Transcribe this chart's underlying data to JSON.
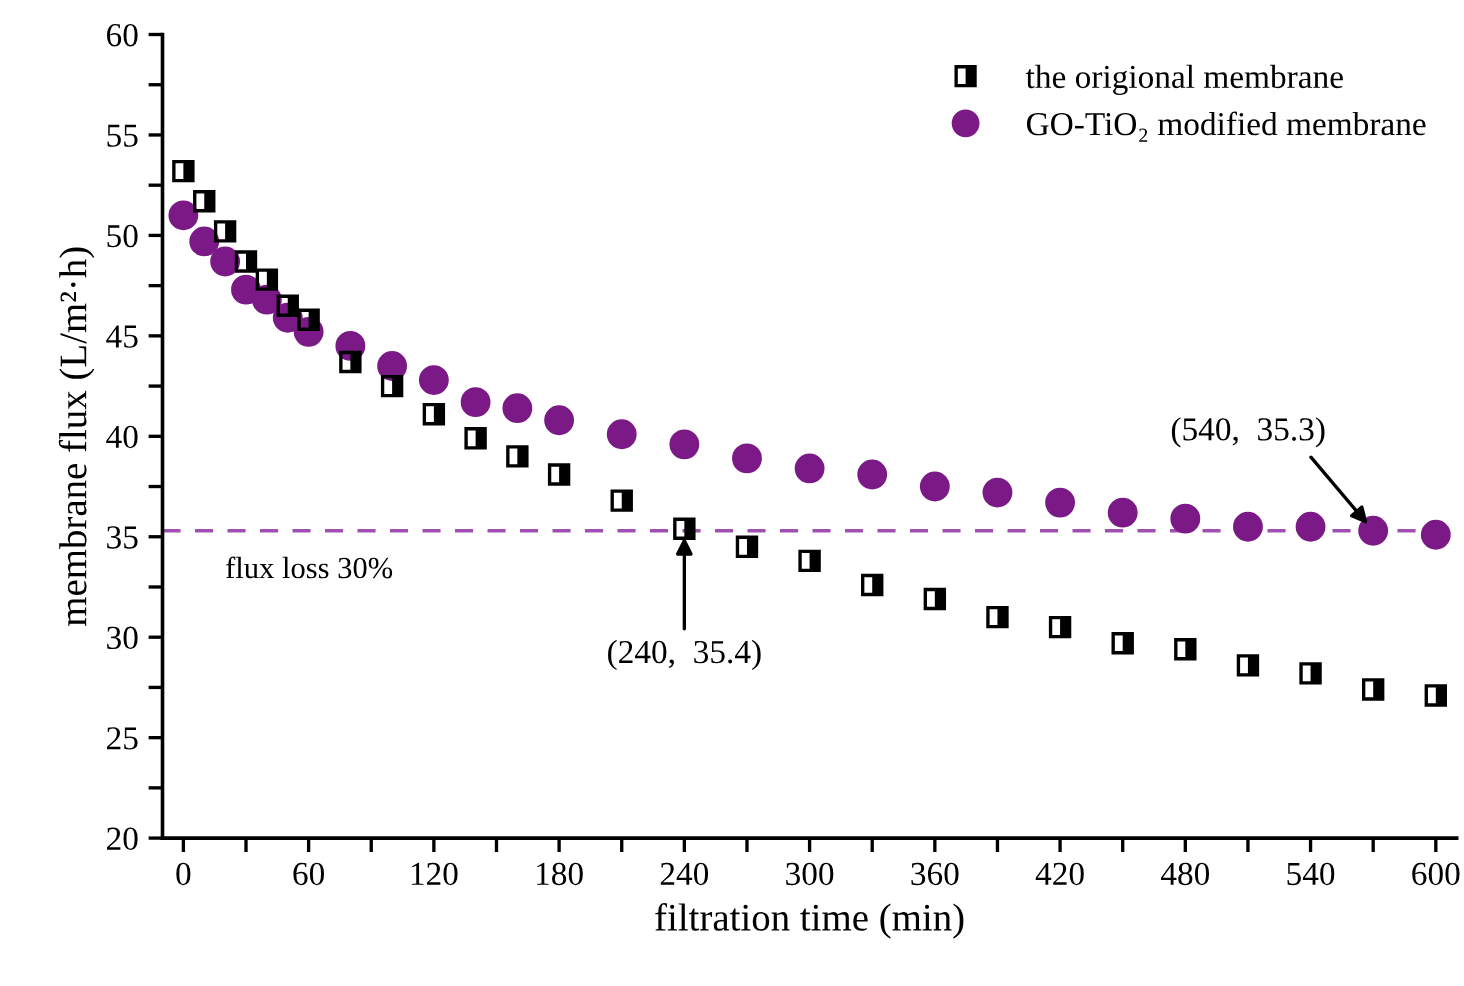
{
  "chart_data": {
    "type": "scatter",
    "xlabel": "filtration time (min)",
    "ylabel": "membrane flux (L/m²·h)",
    "xlim": [
      -10,
      610
    ],
    "ylim": [
      20,
      60
    ],
    "xticks": [
      0,
      {
        "value": 30,
        "label": null
      },
      60,
      {
        "value": 90,
        "label": null
      },
      120,
      {
        "value": 150,
        "label": null
      },
      180,
      {
        "value": 210,
        "label": null
      },
      240,
      {
        "value": 270,
        "label": null
      },
      300,
      {
        "value": 330,
        "label": null
      },
      360,
      {
        "value": 390,
        "label": null
      },
      420,
      {
        "value": 450,
        "label": null
      },
      480,
      {
        "value": 510,
        "label": null
      },
      540,
      {
        "value": 570,
        "label": null
      },
      600
    ],
    "yticks": [
      20,
      {
        "value": 22.5,
        "label": null
      },
      25,
      {
        "value": 27.5,
        "label": null
      },
      30,
      {
        "value": 32.5,
        "label": null
      },
      35,
      {
        "value": 37.5,
        "label": null
      },
      40,
      {
        "value": 42.5,
        "label": null
      },
      45,
      {
        "value": 47.5,
        "label": null
      },
      50,
      {
        "value": 52.5,
        "label": null
      },
      55,
      {
        "value": 57.5,
        "label": null
      },
      60
    ],
    "x": [
      0,
      10,
      20,
      30,
      40,
      50,
      60,
      80,
      100,
      120,
      140,
      160,
      180,
      210,
      240,
      270,
      300,
      330,
      360,
      390,
      420,
      450,
      480,
      510,
      540,
      570,
      600
    ],
    "series": [
      {
        "name": "the origional membrane",
        "color": "#000000",
        "marker": "square",
        "values": [
          53.2,
          51.7,
          50.2,
          48.7,
          47.8,
          46.5,
          45.8,
          43.7,
          42.5,
          41.1,
          39.9,
          39.0,
          38.1,
          36.8,
          35.4,
          34.5,
          33.8,
          32.6,
          31.9,
          31.0,
          30.5,
          29.7,
          29.4,
          28.6,
          28.2,
          27.4,
          27.1
        ]
      },
      {
        "name": "GO-TiO₂ modified membrane",
        "color": "#7b1a86",
        "marker": "circle",
        "values": [
          51.0,
          49.7,
          48.7,
          47.3,
          46.8,
          45.9,
          45.2,
          44.5,
          43.5,
          42.8,
          41.7,
          41.4,
          40.8,
          40.1,
          39.6,
          38.9,
          38.4,
          38.1,
          37.5,
          37.2,
          36.7,
          36.2,
          35.9,
          35.5,
          35.5,
          35.3,
          35.1
        ]
      }
    ],
    "ref_lines": [
      {
        "axis": "y",
        "value": 35.3,
        "label": "flux loss 30%",
        "color": "#a050b0",
        "line_style": "dashed"
      }
    ],
    "annotations": [
      {
        "text": "(240,  35.4)",
        "x": 240,
        "y": 35.4
      },
      {
        "text": "(540,  35.3)",
        "x": 570,
        "y": 35.3
      }
    ],
    "legend": "top right",
    "grid": false
  }
}
